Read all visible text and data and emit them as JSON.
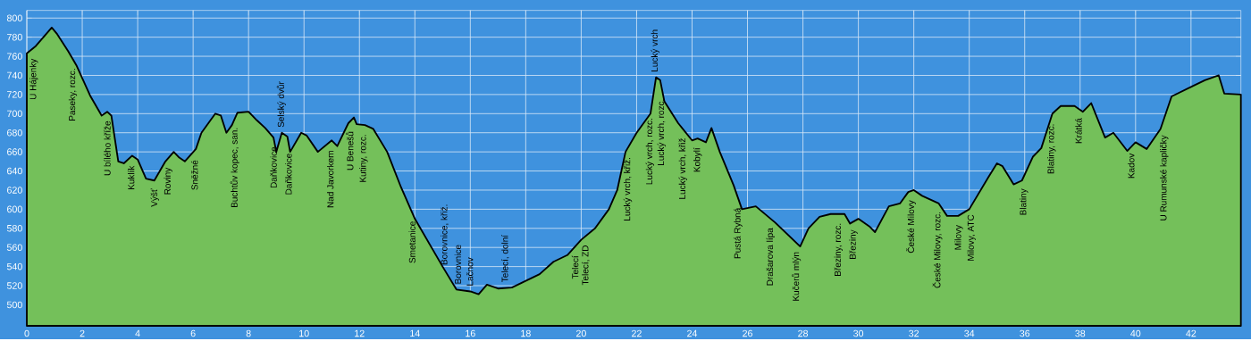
{
  "chart_data": {
    "type": "area",
    "x": [
      0,
      0.3,
      0.9,
      1.1,
      1.5,
      1.8,
      2.3,
      2.7,
      2.9,
      3.05,
      3.3,
      3.5,
      3.8,
      4.0,
      4.3,
      4.6,
      5.0,
      5.3,
      5.5,
      5.7,
      6.1,
      6.3,
      6.8,
      7.0,
      7.2,
      7.4,
      7.6,
      8.0,
      8.3,
      8.6,
      8.9,
      9.0,
      9.2,
      9.4,
      9.5,
      9.9,
      10.1,
      10.5,
      11.0,
      11.2,
      11.6,
      11.8,
      11.9,
      12.2,
      12.5,
      13.0,
      13.5,
      14.0,
      14.5,
      15.0,
      15.5,
      16.0,
      16.3,
      16.6,
      17.0,
      17.5,
      18.0,
      18.5,
      19.0,
      19.5,
      20.0,
      20.5,
      21.0,
      21.3,
      21.6,
      22.0,
      22.5,
      22.7,
      22.85,
      23.0,
      23.5,
      24.0,
      24.2,
      24.5,
      24.7,
      25.0,
      25.5,
      25.8,
      26.3,
      27.0,
      27.9,
      28.2,
      28.6,
      29.0,
      29.5,
      29.7,
      30.0,
      30.4,
      30.6,
      31.1,
      31.5,
      31.8,
      32.0,
      32.3,
      32.9,
      33.2,
      33.6,
      34.0,
      34.7,
      35.0,
      35.2,
      35.6,
      35.9,
      36.3,
      36.6,
      37.0,
      37.3,
      37.8,
      38.1,
      38.4,
      38.9,
      39.2,
      39.7,
      40.0,
      40.4,
      40.9,
      41.3,
      42.0,
      42.5,
      43.0,
      43.2,
      43.8
    ],
    "values": [
      763,
      770,
      790,
      783,
      765,
      750,
      718,
      698,
      702,
      698,
      650,
      648,
      656,
      652,
      632,
      630,
      650,
      660,
      654,
      650,
      663,
      680,
      700,
      698,
      680,
      688,
      701,
      702,
      693,
      685,
      675,
      660,
      680,
      676,
      660,
      680,
      677,
      660,
      672,
      666,
      690,
      696,
      689,
      688,
      684,
      660,
      623,
      590,
      565,
      540,
      516,
      514,
      511,
      521,
      517,
      518,
      525,
      532,
      545,
      552,
      568,
      580,
      600,
      620,
      660,
      680,
      700,
      738,
      735,
      713,
      690,
      672,
      674,
      670,
      685,
      660,
      625,
      600,
      603,
      586,
      561,
      580,
      592,
      595,
      595,
      585,
      590,
      582,
      576,
      603,
      606,
      618,
      620,
      614,
      606,
      593,
      593,
      600,
      634,
      648,
      645,
      626,
      630,
      655,
      664,
      700,
      708,
      708,
      702,
      711,
      675,
      680,
      661,
      670,
      663,
      684,
      718,
      728,
      735,
      740,
      721,
      720
    ],
    "color": "#74c05a",
    "xlim": [
      0,
      43.8
    ],
    "ylim": [
      478,
      808
    ],
    "xticks": [
      0,
      2,
      4,
      6,
      8,
      10,
      12,
      14,
      16,
      18,
      20,
      22,
      24,
      26,
      28,
      30,
      32,
      34,
      36,
      38,
      40,
      42
    ],
    "yticks": [
      500,
      520,
      540,
      560,
      580,
      600,
      620,
      640,
      660,
      680,
      700,
      720,
      740,
      760,
      780,
      800
    ],
    "grid": true,
    "annotations": [
      {
        "text": "U Hájenky",
        "x": 0.25,
        "y": 767
      },
      {
        "text": "Paseky, rozc.",
        "x": 1.66,
        "y": 757
      },
      {
        "text": "U bílého kříže",
        "x": 2.9,
        "y": 702
      },
      {
        "text": "Kuklík",
        "x": 3.76,
        "y": 655
      },
      {
        "text": "Výšť",
        "x": 4.62,
        "y": 631
      },
      {
        "text": "Roviny",
        "x": 5.1,
        "y": 653
      },
      {
        "text": "Sněžné",
        "x": 6.05,
        "y": 661
      },
      {
        "text": "Buchtův kopec, san.",
        "x": 7.5,
        "y": 695
      },
      {
        "text": "Daňkovice",
        "x": 8.9,
        "y": 675
      },
      {
        "text": "Selský dvůr",
        "x": 9.18,
        "y": 680
      },
      {
        "text": "Daňkovice",
        "x": 9.44,
        "y": 668
      },
      {
        "text": "Nad Javorkem",
        "x": 10.95,
        "y": 671
      },
      {
        "text": "U Benešů",
        "x": 11.65,
        "y": 691
      },
      {
        "text": "Kutiny, rozc.",
        "x": 12.15,
        "y": 688
      },
      {
        "text": "Smetanice",
        "x": 13.9,
        "y": 597
      },
      {
        "text": "Borovnice, křiž.",
        "x": 15.07,
        "y": 536
      },
      {
        "text": "Borovnice",
        "x": 15.55,
        "y": 516
      },
      {
        "text": "Lačnov",
        "x": 15.98,
        "y": 514
      },
      {
        "text": "Telecí, dolní",
        "x": 17.26,
        "y": 518
      },
      {
        "text": "Telecí",
        "x": 19.78,
        "y": 561
      },
      {
        "text": "Telecí, ZD",
        "x": 20.16,
        "y": 572
      },
      {
        "text": "Lucký vrch, křiž.",
        "x": 21.68,
        "y": 664
      },
      {
        "text": "Lucký vrch, rozc.",
        "x": 22.48,
        "y": 705
      },
      {
        "text": "Lucký vrch",
        "x": 22.67,
        "y": 738
      },
      {
        "text": "Lucký vrch, rozc.",
        "x": 22.9,
        "y": 725
      },
      {
        "text": "Lucký vrch, křiž",
        "x": 23.67,
        "y": 684
      },
      {
        "text": "Kobylí",
        "x": 24.2,
        "y": 674
      },
      {
        "text": "Pustá Rybná",
        "x": 25.66,
        "y": 611
      },
      {
        "text": "Drašarova lípa",
        "x": 26.83,
        "y": 590
      },
      {
        "text": "Kučerů mlýn",
        "x": 27.76,
        "y": 565
      },
      {
        "text": "Březiny, rozc.",
        "x": 29.28,
        "y": 595
      },
      {
        "text": "Březiny",
        "x": 29.82,
        "y": 588
      },
      {
        "text": "České Milovy",
        "x": 31.9,
        "y": 619
      },
      {
        "text": "České Milovy, rozc.",
        "x": 32.85,
        "y": 607
      },
      {
        "text": "Milovy",
        "x": 33.62,
        "y": 593
      },
      {
        "text": "Milovy, ATC",
        "x": 34.08,
        "y": 604
      },
      {
        "text": "Blatiny",
        "x": 35.97,
        "y": 631
      },
      {
        "text": "Blatiny, rozc.",
        "x": 36.97,
        "y": 699
      },
      {
        "text": "Krátká",
        "x": 37.94,
        "y": 705
      },
      {
        "text": "Kadov",
        "x": 39.84,
        "y": 668
      },
      {
        "text": "U Rumunské kapličky",
        "x": 41.03,
        "y": 687
      }
    ]
  }
}
